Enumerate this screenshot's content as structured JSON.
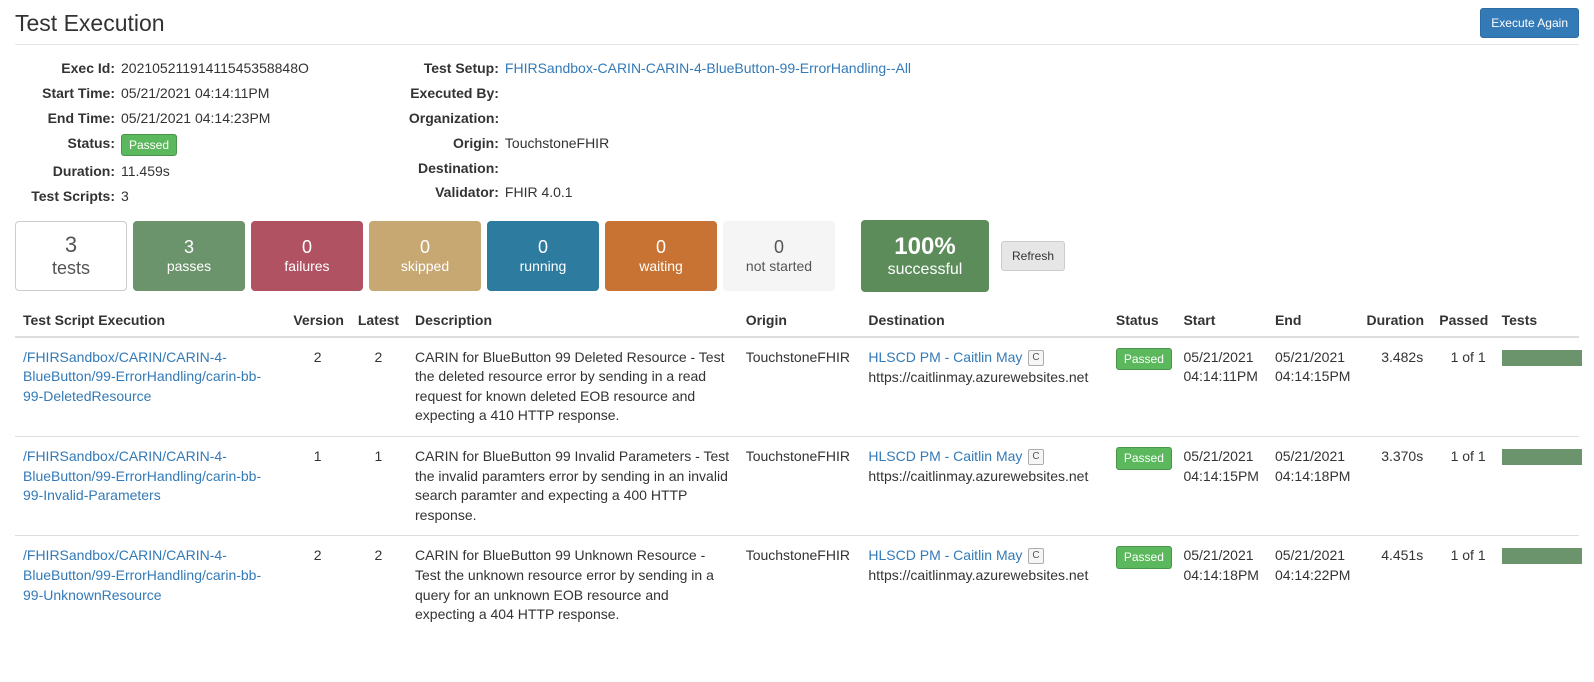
{
  "header": {
    "title": "Test Execution",
    "execute_again_label": "Execute Again"
  },
  "meta_left": {
    "exec_id_label": "Exec Id:",
    "exec_id": "20210521191411545358848O",
    "start_time_label": "Start Time:",
    "start_time": "05/21/2021 04:14:11PM",
    "end_time_label": "End Time:",
    "end_time": "05/21/2021 04:14:23PM",
    "status_label": "Status:",
    "status_badge": "Passed",
    "duration_label": "Duration:",
    "duration": "11.459s",
    "test_scripts_label": "Test Scripts:",
    "test_scripts": "3"
  },
  "meta_right": {
    "test_setup_label": "Test Setup:",
    "test_setup": "FHIRSandbox-CARIN-CARIN-4-BlueButton-99-ErrorHandling--All",
    "executed_by_label": "Executed By:",
    "executed_by": "",
    "organization_label": "Organization:",
    "organization": "",
    "origin_label": "Origin:",
    "origin": "TouchstoneFHIR",
    "destination_label": "Destination:",
    "destination": "",
    "validator_label": "Validator:",
    "validator": "FHIR 4.0.1"
  },
  "summary": {
    "tests": {
      "num": "3",
      "label": "tests"
    },
    "passes": {
      "num": "3",
      "label": "passes"
    },
    "failures": {
      "num": "0",
      "label": "failures"
    },
    "skipped": {
      "num": "0",
      "label": "skipped"
    },
    "running": {
      "num": "0",
      "label": "running"
    },
    "waiting": {
      "num": "0",
      "label": "waiting"
    },
    "not_started": {
      "num": "0",
      "label": "not started"
    },
    "success": {
      "pct": "100%",
      "label": "successful"
    },
    "refresh_label": "Refresh"
  },
  "colors": {
    "passes": "#6c946c",
    "failures": "#b15263",
    "skipped": "#c7a772",
    "running": "#2d7ca0",
    "waiting": "#c87333",
    "success": "#5b8c5a",
    "status_badge": "#5cb85c",
    "progress_fill": "#6c946c",
    "link": "#337ab7"
  },
  "table": {
    "headers": {
      "script": "Test Script Execution",
      "version": "Version",
      "latest": "Latest",
      "description": "Description",
      "origin": "Origin",
      "destination": "Destination",
      "status": "Status",
      "start": "Start",
      "end": "End",
      "duration": "Duration",
      "passed": "Passed",
      "tests": "Tests"
    },
    "rows": [
      {
        "script": "/FHIRSandbox/CARIN/CARIN-4-BlueButton/99-ErrorHandling/carin-bb-99-DeletedResource",
        "version": "2",
        "latest": "2",
        "description": "CARIN for BlueButton 99 Deleted Resource - Test the deleted resource error by sending in a read request for known deleted EOB resource and expecting a 410 HTTP response.",
        "origin": "TouchstoneFHIR",
        "dest_name": "HLSCD PM - Caitlin May",
        "dest_badge": "C",
        "dest_url": "https://caitlinmay.azurewebsites.net",
        "status": "Passed",
        "start": "05/21/2021 04:14:11PM",
        "end": "05/21/2021 04:14:15PM",
        "duration": "3.482s",
        "passed": "1 of 1"
      },
      {
        "script": "/FHIRSandbox/CARIN/CARIN-4-BlueButton/99-ErrorHandling/carin-bb-99-Invalid-Parameters",
        "version": "1",
        "latest": "1",
        "description": "CARIN for BlueButton 99 Invalid Parameters - Test the invalid paramters error by sending in an invalid search paramter and expecting a 400 HTTP response.",
        "origin": "TouchstoneFHIR",
        "dest_name": "HLSCD PM - Caitlin May",
        "dest_badge": "C",
        "dest_url": "https://caitlinmay.azurewebsites.net",
        "status": "Passed",
        "start": "05/21/2021 04:14:15PM",
        "end": "05/21/2021 04:14:18PM",
        "duration": "3.370s",
        "passed": "1 of 1"
      },
      {
        "script": "/FHIRSandbox/CARIN/CARIN-4-BlueButton/99-ErrorHandling/carin-bb-99-UnknownResource",
        "version": "2",
        "latest": "2",
        "description": "CARIN for BlueButton 99 Unknown Resource - Test the unknown resource error by sending in a query for an unknown EOB resource and expecting a 404 HTTP response.",
        "origin": "TouchstoneFHIR",
        "dest_name": "HLSCD PM - Caitlin May",
        "dest_badge": "C",
        "dest_url": "https://caitlinmay.azurewebsites.net",
        "status": "Passed",
        "start": "05/21/2021 04:14:18PM",
        "end": "05/21/2021 04:14:22PM",
        "duration": "4.451s",
        "passed": "1 of 1"
      }
    ]
  }
}
